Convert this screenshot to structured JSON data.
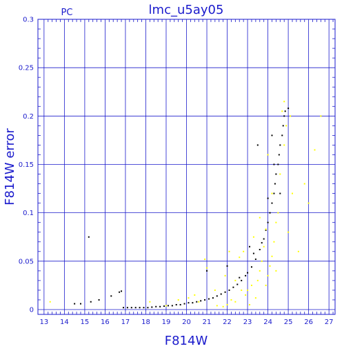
{
  "chart_data": {
    "type": "scatter",
    "title": "lmc_u5ay05",
    "subtitle": "PC",
    "xlabel": "F814W",
    "ylabel": "F814W error",
    "xlim": [
      12.7,
      27.3
    ],
    "ylim": [
      -0.005,
      0.3
    ],
    "x_ticks": [
      "13",
      "14",
      "15",
      "16",
      "17",
      "18",
      "19",
      "20",
      "21",
      "22",
      "23",
      "24",
      "25",
      "26",
      "27"
    ],
    "y_ticks": [
      "0",
      "0.05",
      "0.1",
      "0.15",
      "0.2",
      "0.25",
      "0.3"
    ],
    "grid": true,
    "colors": {
      "axis": "#1a1acc",
      "grid": "#1a1acc",
      "series_primary": "#000000",
      "series_secondary": "#ffff00"
    },
    "series": [
      {
        "color": "#000000",
        "points": [
          [
            14.5,
            0.006
          ],
          [
            14.8,
            0.006
          ],
          [
            15.2,
            0.075
          ],
          [
            15.3,
            0.008
          ],
          [
            15.7,
            0.01
          ],
          [
            16.3,
            0.014
          ],
          [
            16.7,
            0.018
          ],
          [
            16.8,
            0.019
          ],
          [
            16.9,
            0.002
          ],
          [
            17.1,
            0.002
          ],
          [
            17.3,
            0.002
          ],
          [
            17.5,
            0.002
          ],
          [
            17.7,
            0.002
          ],
          [
            17.9,
            0.002
          ],
          [
            18.1,
            0.002
          ],
          [
            18.3,
            0.0025
          ],
          [
            18.5,
            0.003
          ],
          [
            18.7,
            0.003
          ],
          [
            18.9,
            0.0035
          ],
          [
            19.1,
            0.004
          ],
          [
            19.3,
            0.004
          ],
          [
            19.5,
            0.005
          ],
          [
            19.7,
            0.005
          ],
          [
            19.9,
            0.006
          ],
          [
            20.1,
            0.007
          ],
          [
            20.3,
            0.007
          ],
          [
            20.5,
            0.008
          ],
          [
            20.7,
            0.009
          ],
          [
            20.9,
            0.01
          ],
          [
            21.1,
            0.011
          ],
          [
            21.3,
            0.012
          ],
          [
            21.5,
            0.014
          ],
          [
            21.7,
            0.016
          ],
          [
            21.9,
            0.018
          ],
          [
            22.1,
            0.02
          ],
          [
            22.3,
            0.023
          ],
          [
            22.5,
            0.026
          ],
          [
            22.7,
            0.03
          ],
          [
            22.9,
            0.035
          ],
          [
            23.0,
            0.038
          ],
          [
            23.2,
            0.044
          ],
          [
            23.4,
            0.052
          ],
          [
            23.6,
            0.062
          ],
          [
            23.8,
            0.073
          ],
          [
            23.9,
            0.082
          ],
          [
            24.0,
            0.09
          ],
          [
            24.1,
            0.1
          ],
          [
            24.2,
            0.11
          ],
          [
            24.3,
            0.12
          ],
          [
            24.35,
            0.13
          ],
          [
            24.4,
            0.14
          ],
          [
            24.5,
            0.15
          ],
          [
            24.55,
            0.16
          ],
          [
            24.6,
            0.17
          ],
          [
            24.7,
            0.18
          ],
          [
            24.75,
            0.19
          ],
          [
            24.8,
            0.2
          ],
          [
            24.85,
            0.205
          ],
          [
            25.0,
            0.208
          ],
          [
            21.0,
            0.04
          ],
          [
            22.0,
            0.045
          ],
          [
            22.6,
            0.033
          ],
          [
            23.3,
            0.058
          ],
          [
            23.7,
            0.069
          ],
          [
            24.2,
            0.18
          ],
          [
            24.6,
            0.12
          ],
          [
            23.5,
            0.17
          ],
          [
            24.3,
            0.15
          ],
          [
            24.0,
            0.115
          ],
          [
            23.1,
            0.065
          ]
        ]
      },
      {
        "color": "#ffff00",
        "points": [
          [
            13.3,
            0.008
          ],
          [
            18.2,
            0.008
          ],
          [
            19.0,
            0.004
          ],
          [
            19.6,
            0.01
          ],
          [
            20.1,
            0.012
          ],
          [
            20.4,
            0.015
          ],
          [
            20.9,
            0.052
          ],
          [
            21.0,
            0.043
          ],
          [
            21.4,
            0.02
          ],
          [
            21.8,
            0.003
          ],
          [
            22.0,
            0.005
          ],
          [
            22.2,
            0.01
          ],
          [
            22.4,
            0.03
          ],
          [
            22.6,
            0.054
          ],
          [
            22.8,
            0.06
          ],
          [
            22.9,
            0.015
          ],
          [
            23.0,
            0.02
          ],
          [
            23.2,
            0.025
          ],
          [
            23.3,
            0.075
          ],
          [
            23.4,
            0.012
          ],
          [
            23.5,
            0.03
          ],
          [
            23.6,
            0.04
          ],
          [
            23.7,
            0.05
          ],
          [
            23.8,
            0.065
          ],
          [
            23.9,
            0.083
          ],
          [
            24.0,
            0.035
          ],
          [
            24.1,
            0.045
          ],
          [
            24.2,
            0.055
          ],
          [
            24.3,
            0.07
          ],
          [
            24.4,
            0.09
          ],
          [
            24.5,
            0.1
          ],
          [
            24.6,
            0.14
          ],
          [
            24.7,
            0.205
          ],
          [
            24.8,
            0.215
          ],
          [
            24.9,
            0.19
          ],
          [
            25.2,
            0.12
          ],
          [
            25.5,
            0.06
          ],
          [
            25.8,
            0.13
          ],
          [
            26.0,
            0.11
          ],
          [
            26.3,
            0.165
          ],
          [
            26.6,
            0.2
          ],
          [
            25.0,
            0.08
          ],
          [
            24.2,
            0.12
          ],
          [
            23.6,
            0.095
          ],
          [
            22.4,
            0.008
          ],
          [
            23.1,
            0.005
          ],
          [
            22.7,
            0.02
          ],
          [
            23.9,
            0.025
          ],
          [
            24.4,
            0.04
          ],
          [
            24.0,
            0.16
          ],
          [
            24.8,
            0.17
          ],
          [
            25.1,
            0.2
          ],
          [
            21.9,
            0.035
          ],
          [
            22.1,
            0.06
          ],
          [
            20.6,
            0.008
          ],
          [
            21.5,
            0.004
          ]
        ]
      }
    ]
  }
}
